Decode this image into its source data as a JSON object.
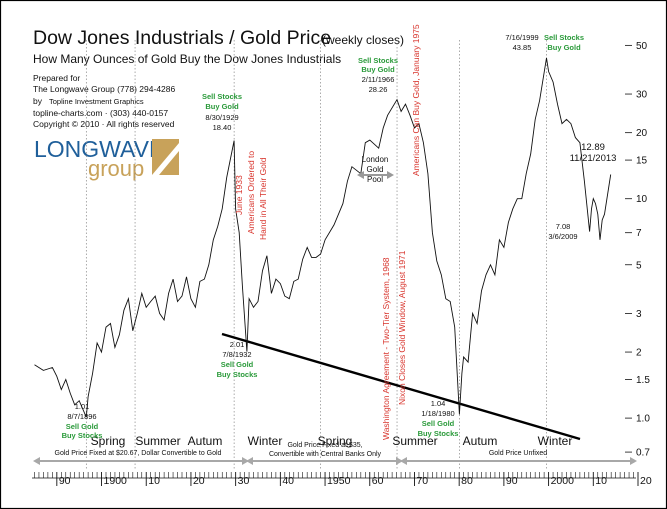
{
  "header": {
    "title": "Dow Jones Industrials / Gold Price",
    "title_suffix": "(weekly closes)",
    "subtitle": "How Many Ounces of Gold Buy the Dow Jones Industrials",
    "prepared_for": "Prepared for",
    "client": "The Longwave Group (778) 294-4286",
    "by": "by",
    "author": "Topline Investment Graphics",
    "contact": "topline-charts.com · (303) 440-0157",
    "copyright": "Copyright © 2010 · All rights reserved"
  },
  "logo": {
    "line1": "LONGWAVE",
    "line2": "group",
    "accent_color": "#c8a25a",
    "blue": "#1f5f9a"
  },
  "colors": {
    "line": "#111111",
    "green": "#2a9a3a",
    "red": "#d8342c",
    "grid": "#888888",
    "arrow": "#a8a8a8"
  },
  "chart_data": {
    "type": "line",
    "title": "Dow Jones Industrials / Gold Price",
    "ylabel": "",
    "xlabel": "",
    "y_scale": "log",
    "ylim": [
      0.58,
      60
    ],
    "xlim": [
      1884,
      2020
    ],
    "y_ticks": [
      "50",
      "30",
      "20",
      "15",
      "10",
      "7",
      "5",
      "3",
      "2",
      "1.5",
      "1.0",
      "0.7"
    ],
    "y_tick_values": [
      50,
      30,
      20,
      15,
      10,
      7,
      5,
      3,
      2,
      1.5,
      1.0,
      0.7
    ],
    "x_ticks": [
      "90",
      "1900",
      "10",
      "20",
      "30",
      "40",
      "1950",
      "60",
      "70",
      "80",
      "90",
      "2000",
      "10",
      "20"
    ],
    "x_tick_values": [
      1890,
      1900,
      1910,
      1920,
      1930,
      1940,
      1950,
      1960,
      1970,
      1980,
      1990,
      2000,
      2010,
      2020
    ],
    "series": [
      {
        "x": [
          1885,
          1887,
          1889,
          1890,
          1891,
          1892,
          1893,
          1894,
          1895,
          1896.6,
          1897,
          1898,
          1899,
          1900,
          1901,
          1902,
          1903,
          1904,
          1905,
          1906,
          1907,
          1908,
          1909,
          1910,
          1911,
          1912,
          1913,
          1914,
          1915,
          1916,
          1917,
          1918,
          1919,
          1920,
          1921,
          1922,
          1923,
          1924,
          1925,
          1926,
          1927,
          1928,
          1929.66,
          1930,
          1930.8,
          1931.5,
          1932.52,
          1933,
          1934,
          1935,
          1936,
          1937,
          1938,
          1939,
          1940,
          1941,
          1942,
          1943,
          1944,
          1945,
          1946,
          1947,
          1948,
          1949,
          1950,
          1952,
          1954,
          1955,
          1956,
          1958,
          1959,
          1960,
          1962,
          1963,
          1964,
          1966.1,
          1967,
          1968,
          1969,
          1970,
          1971,
          1972,
          1973,
          1974,
          1975,
          1976,
          1977,
          1978,
          1979,
          1980.05,
          1980.6,
          1981,
          1982,
          1983,
          1984,
          1985,
          1986,
          1987,
          1988,
          1989,
          1990,
          1991,
          1992,
          1993,
          1994,
          1995,
          1996,
          1997,
          1998,
          1999.54,
          2000,
          2001,
          2002,
          2003,
          2004,
          2005,
          2006,
          2007,
          2008,
          2009.18,
          2009.6,
          2010,
          2010.5,
          2011,
          2011.5,
          2012,
          2012.5,
          2013.89
        ],
        "y": [
          1.75,
          1.65,
          1.7,
          1.55,
          1.35,
          1.5,
          1.3,
          1.15,
          1.2,
          1.01,
          1.25,
          1.6,
          2.2,
          2.0,
          2.6,
          2.7,
          2.1,
          2.4,
          3.1,
          3.5,
          2.5,
          3.0,
          3.7,
          3.2,
          3.4,
          3.6,
          3.0,
          2.8,
          3.7,
          4.3,
          3.4,
          3.6,
          4.4,
          3.5,
          3.2,
          4.2,
          4.3,
          5.0,
          6.5,
          7.5,
          9.0,
          12.5,
          18.4,
          9.0,
          7.0,
          4.0,
          2.01,
          3.5,
          3.2,
          3.4,
          4.7,
          5.5,
          3.7,
          4.3,
          4.1,
          3.6,
          3.5,
          4.2,
          4.3,
          5.3,
          6.0,
          5.4,
          5.4,
          5.6,
          6.5,
          7.6,
          9.5,
          12.0,
          14.0,
          13.0,
          18.0,
          18.5,
          17.0,
          21.0,
          24.0,
          28.26,
          25.0,
          27.0,
          24.0,
          21.0,
          22.0,
          18.0,
          13.0,
          7.0,
          5.2,
          4.5,
          3.5,
          3.4,
          2.6,
          1.04,
          1.6,
          1.9,
          1.8,
          3.0,
          2.7,
          3.8,
          4.5,
          5.0,
          4.5,
          6.5,
          6.0,
          7.8,
          9.0,
          10.0,
          10.0,
          13.0,
          16.0,
          23.0,
          28.0,
          43.85,
          38.0,
          34.0,
          27.0,
          22.0,
          23.0,
          22.0,
          19.0,
          18.0,
          12.0,
          7.08,
          9.0,
          10.0,
          9.5,
          8.5,
          6.5,
          8.0,
          8.5,
          12.89
        ]
      }
    ],
    "annotations": [
      {
        "label_lines": [
          "1.01",
          "8/7/1896"
        ],
        "color": "#111111",
        "sell_lines": [
          "Sell Gold",
          "Buy Stocks"
        ]
      },
      {
        "label_lines": [
          "8/30/1929",
          "18.40"
        ],
        "color": "#111111",
        "sell_lines": [
          "Sell Stocks",
          "Buy Gold"
        ]
      },
      {
        "label_lines": [
          "2.01",
          "7/8/1932"
        ],
        "color": "#111111",
        "sell_lines": [
          "Sell Gold",
          "Buy Stocks"
        ]
      },
      {
        "label_lines": [
          "2/11/1966",
          "28.26"
        ],
        "color": "#111111",
        "sell_lines": [
          "Sell Stocks",
          "Buy Gold"
        ]
      },
      {
        "label_lines": [
          "1.04",
          "1/18/1980"
        ],
        "color": "#111111",
        "sell_lines": [
          "Sell Gold",
          "Buy Stocks"
        ]
      },
      {
        "label_lines": [
          "7/16/1999",
          "43.85"
        ],
        "color": "#111111",
        "sell_lines": [
          "Sell Stocks",
          "Buy Gold"
        ]
      },
      {
        "label_lines": [
          "7.08",
          "3/6/2009"
        ],
        "color": "#111111",
        "sell_lines": []
      },
      {
        "label_lines": [
          "12.89",
          "11/21/2013"
        ],
        "color": "#111111",
        "sell_lines": []
      }
    ],
    "events": [
      {
        "text": "June 1933",
        "color": "#d8342c"
      },
      {
        "text": "Americans Ordered to",
        "color": "#d8342c"
      },
      {
        "text": "Hand in All Their Gold",
        "color": "#d8342c"
      },
      {
        "text": "Americans Can Buy Gold, January 1975",
        "color": "#d8342c"
      },
      {
        "text": "Washington Agreement - Two-Tier System, 1968",
        "color": "#d8342c"
      },
      {
        "text": "Nixon Closes Gold Window, August 1971",
        "color": "#d8342c"
      }
    ],
    "london_pool": [
      "London",
      "Gold",
      "Pool"
    ],
    "seasons": [
      "Spring",
      "Summer",
      "Autum",
      "Winter",
      "Spring",
      "Summer",
      "Autum",
      "Winter"
    ],
    "regimes": [
      "Gold Price Fixed at $20.67, Dollar Convertible to Gold",
      "Gold Price Fixed at $35,",
      "Convertible with Central Banks Only",
      "Gold Price Unfixed"
    ]
  }
}
